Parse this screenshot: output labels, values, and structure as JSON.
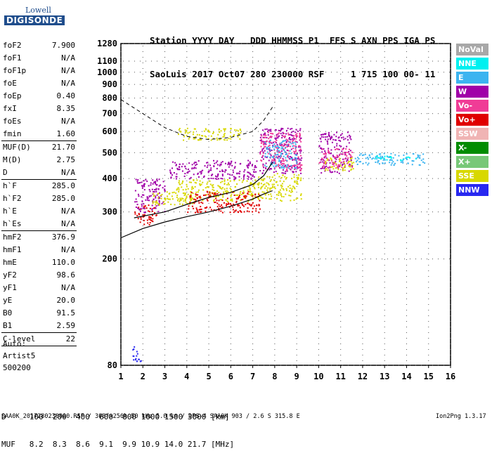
{
  "logo": {
    "line1": "Lowell",
    "line2": "DIGISONDE"
  },
  "header": {
    "row1": "Station YYYY DAY   DDD HHMMSS P1  FFS S AXN PPS IGA PS",
    "row2": "SaoLuis 2017 Oct07 280 230000 RSF     1 715 100 00- 11"
  },
  "params": [
    {
      "label": "foF2",
      "value": "7.900"
    },
    {
      "label": "foF1",
      "value": "N/A"
    },
    {
      "label": "foF1p",
      "value": "N/A"
    },
    {
      "label": "foE",
      "value": "N/A"
    },
    {
      "label": "foEp",
      "value": "0.40"
    },
    {
      "label": "fxI",
      "value": "8.35"
    },
    {
      "label": "foEs",
      "value": "N/A"
    },
    {
      "label": "fmin",
      "value": "1.60"
    },
    {
      "label": "MUF(D)",
      "value": "21.70"
    },
    {
      "label": "M(D)",
      "value": "2.75"
    },
    {
      "label": "D",
      "value": "N/A"
    },
    {
      "label": "h`F",
      "value": "285.0"
    },
    {
      "label": "h`F2",
      "value": "285.0"
    },
    {
      "label": "h`E",
      "value": "N/A"
    },
    {
      "label": "h`Es",
      "value": "N/A"
    },
    {
      "label": "hmF2",
      "value": "376.9"
    },
    {
      "label": "hmF1",
      "value": "N/A"
    },
    {
      "label": "hmE",
      "value": "110.0"
    },
    {
      "label": "yF2",
      "value": "98.6"
    },
    {
      "label": "yF1",
      "value": "N/A"
    },
    {
      "label": "yE",
      "value": "20.0"
    },
    {
      "label": "B0",
      "value": "91.5"
    },
    {
      "label": "B1",
      "value": "2.59"
    },
    {
      "label": "C-level",
      "value": "22"
    }
  ],
  "auto": {
    "line1": "Auto:",
    "line2": "Artist5",
    "line3": "500200"
  },
  "legend": [
    {
      "label": "NoVal",
      "color": "#a8a8a8"
    },
    {
      "label": "NNE",
      "color": "#00f0f0"
    },
    {
      "label": "E",
      "color": "#3cb4f0"
    },
    {
      "label": "W",
      "color": "#a000a8"
    },
    {
      "label": "Vo-",
      "color": "#f03c96"
    },
    {
      "label": "Vo+",
      "color": "#e00000"
    },
    {
      "label": "SSW",
      "color": "#f0b4b4"
    },
    {
      "label": "X-",
      "color": "#008c00"
    },
    {
      "label": "X+",
      "color": "#78c878"
    },
    {
      "label": "SSE",
      "color": "#d8d800"
    },
    {
      "label": "NNW",
      "color": "#2828f0"
    }
  ],
  "chart_data": {
    "type": "scatter",
    "xlim": [
      1,
      16
    ],
    "ylim": [
      80,
      1280
    ],
    "x_ticks": [
      1,
      2,
      3,
      4,
      5,
      6,
      7,
      8,
      9,
      10,
      11,
      12,
      13,
      14,
      15,
      16
    ],
    "y_ticks": [
      80,
      200,
      300,
      400,
      500,
      600,
      700,
      800,
      900,
      1000,
      1100,
      1280
    ],
    "y_scale": "log",
    "grid": true,
    "curves": [
      {
        "name": "F2 profile",
        "points": [
          [
            1.6,
            285
          ],
          [
            3,
            300
          ],
          [
            4,
            320
          ],
          [
            5,
            340
          ],
          [
            6,
            355
          ],
          [
            7,
            380
          ],
          [
            7.5,
            410
          ],
          [
            7.9,
            460
          ]
        ]
      },
      {
        "name": "MUF dashed",
        "points": [
          [
            1,
            790
          ],
          [
            2,
            700
          ],
          [
            3,
            620
          ],
          [
            4,
            575
          ],
          [
            5,
            560
          ],
          [
            6,
            570
          ],
          [
            7,
            600
          ],
          [
            7.5,
            660
          ],
          [
            7.9,
            740
          ]
        ]
      },
      {
        "name": "lower trace",
        "points": [
          [
            1,
            240
          ],
          [
            2,
            260
          ],
          [
            3,
            275
          ],
          [
            4,
            288
          ],
          [
            5,
            300
          ],
          [
            6,
            315
          ],
          [
            7,
            335
          ],
          [
            7.5,
            350
          ],
          [
            7.9,
            360
          ]
        ]
      }
    ],
    "echo_clusters": [
      {
        "x": [
          1.6,
          2.6
        ],
        "y": [
          270,
          320
        ],
        "color": "#e00000"
      },
      {
        "x": [
          1.6,
          3.0
        ],
        "y": [
          300,
          400
        ],
        "color": "#a000a8"
      },
      {
        "x": [
          2.4,
          4.3
        ],
        "y": [
          320,
          360
        ],
        "color": "#d8d800"
      },
      {
        "x": [
          3.2,
          7.2
        ],
        "y": [
          400,
          470
        ],
        "color": "#a000a8"
      },
      {
        "x": [
          3.5,
          7.2
        ],
        "y": [
          330,
          400
        ],
        "color": "#d8d800"
      },
      {
        "x": [
          4.0,
          7.3
        ],
        "y": [
          300,
          360
        ],
        "color": "#e00000"
      },
      {
        "x": [
          3.5,
          6.5
        ],
        "y": [
          560,
          620
        ],
        "color": "#d8d800"
      },
      {
        "x": [
          7.2,
          9.2
        ],
        "y": [
          330,
          420
        ],
        "color": "#d8d800"
      },
      {
        "x": [
          7.3,
          9.2
        ],
        "y": [
          420,
          620
        ],
        "color": "#a000a8"
      },
      {
        "x": [
          7.3,
          9.2
        ],
        "y": [
          430,
          600
        ],
        "color": "#f03c96"
      },
      {
        "x": [
          7.5,
          9.0
        ],
        "y": [
          440,
          560
        ],
        "color": "#3cb4f0"
      },
      {
        "x": [
          10.0,
          11.5
        ],
        "y": [
          420,
          600
        ],
        "color": "#a000a8"
      },
      {
        "x": [
          10.0,
          11.5
        ],
        "y": [
          440,
          520
        ],
        "color": "#f03c96"
      },
      {
        "x": [
          10.2,
          11.6
        ],
        "y": [
          430,
          480
        ],
        "color": "#d8d800"
      },
      {
        "x": [
          11.6,
          14.8
        ],
        "y": [
          450,
          500
        ],
        "color": "#3cb4f0"
      },
      {
        "x": [
          12.5,
          14.5
        ],
        "y": [
          470,
          490
        ],
        "color": "#00f0f0"
      },
      {
        "x": [
          1.5,
          1.9
        ],
        "y": [
          82,
          95
        ],
        "color": "#2828f0"
      }
    ]
  },
  "footer": {
    "row1": "D     100  200  400  600  800 1000 1500 3000 [km]",
    "row2": "MUF   8.2  8.3  8.6  9.1  9.9 10.9 14.0 21.7 [MHz]"
  },
  "bottom_line": "SAA0K_2017280230000.RSF / 300fx256h 50 kHz 5.0 km / DPS-4 SAA0K 903 / 2.6 S 315.8 E",
  "version": "Ion2Png 1.3.17"
}
